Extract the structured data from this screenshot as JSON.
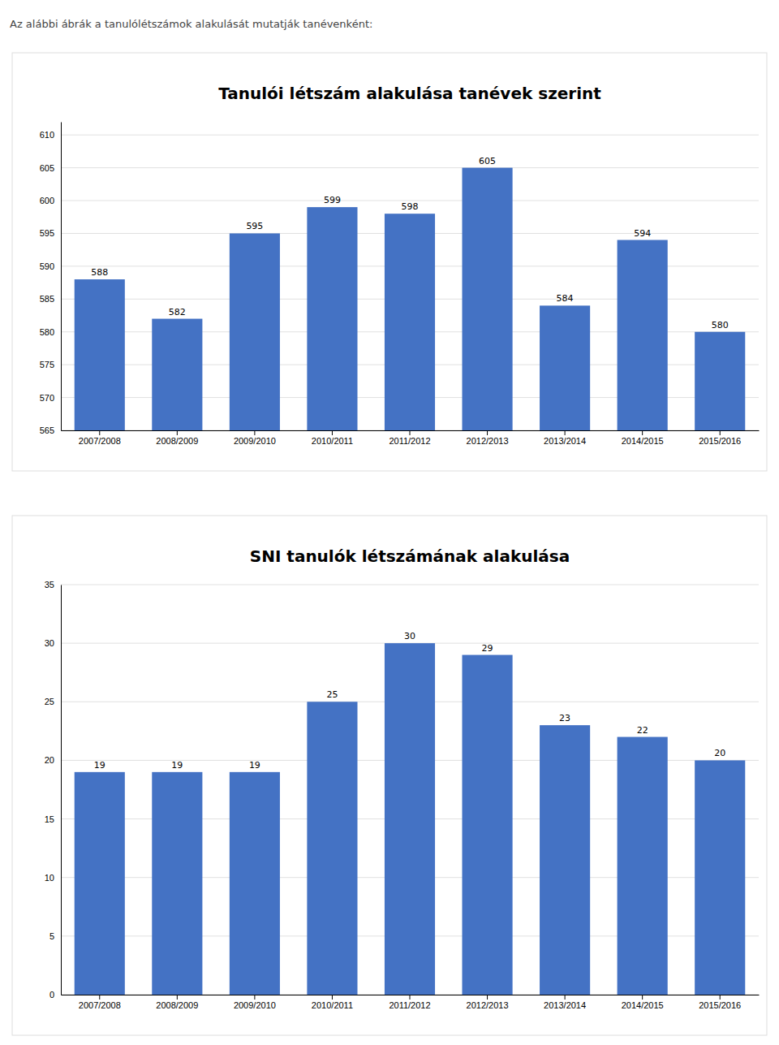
{
  "title": "Az alábbi ábrák a tanulólétszámok alakulását mutatják tanévenként:",
  "chart_data": [
    {
      "type": "bar",
      "title": "Tanulói létszám alakulása tanévek szerint",
      "categories": [
        "2007/2008",
        "2008/2009",
        "2009/2010",
        "2010/2011",
        "2011/2012",
        "2012/2013",
        "2013/2014",
        "2014/2015",
        "2015/2016"
      ],
      "values": [
        588,
        582,
        595,
        599,
        598,
        605,
        584,
        594,
        580
      ],
      "color": "#4472C4",
      "ylim": [
        565,
        612
      ],
      "yticks": [
        565,
        570,
        575,
        580,
        585,
        590,
        595,
        600,
        605,
        610
      ],
      "grid": true,
      "data_labels": true
    },
    {
      "type": "bar",
      "title": "SNI tanulók létszámának alakulása",
      "categories": [
        "2007/2008",
        "2008/2009",
        "2009/2010",
        "2010/2011",
        "2011/2012",
        "2012/2013",
        "2013/2014",
        "2014/2015",
        "2015/2016"
      ],
      "values": [
        19,
        19,
        19,
        25,
        30,
        29,
        23,
        22,
        20
      ],
      "color": "#4472C4",
      "ylim": [
        0,
        35
      ],
      "yticks": [
        0,
        5,
        10,
        15,
        20,
        25,
        30,
        35
      ],
      "grid": true,
      "data_labels": true
    }
  ]
}
